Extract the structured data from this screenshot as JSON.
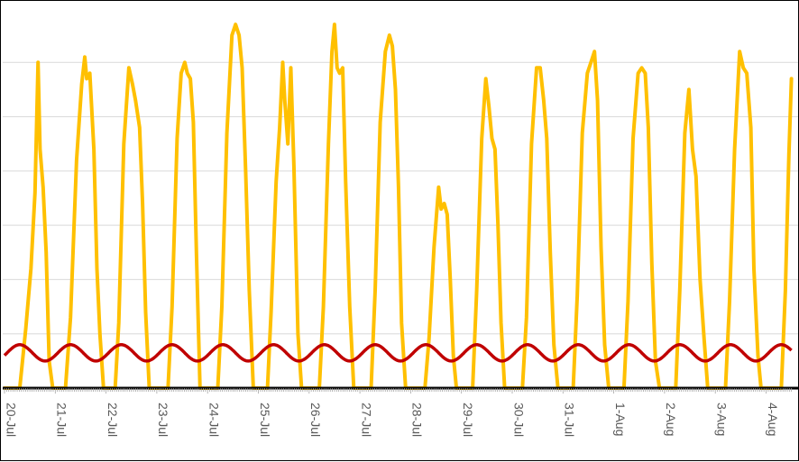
{
  "chart_data": {
    "type": "line",
    "title": "",
    "xlabel": "",
    "ylabel": "",
    "x_tick_labels": [
      "20-Jul",
      "21-Jul",
      "22-Jul",
      "23-Jul",
      "24-Jul",
      "25-Jul",
      "26-Jul",
      "27-Jul",
      "28-Jul",
      "29-Jul",
      "30-Jul",
      "31-Jul",
      "1-Aug",
      "2-Aug",
      "3-Aug",
      "4-Aug"
    ],
    "xlim": [
      0,
      15.5
    ],
    "ylim": [
      0,
      7
    ],
    "grid": "horizontal",
    "legend": "none",
    "colors": {
      "series_1": "#FFC000",
      "series_2": "#C00000",
      "axis": "#000000",
      "grid": "#D9D9D9"
    },
    "series": [
      {
        "color": "#FFC000",
        "peaks": [
          {
            "day": 0,
            "points": [
              [
                0.0,
                0
              ],
              [
                0.3,
                0
              ],
              [
                0.42,
                1.1
              ],
              [
                0.52,
                2.2
              ],
              [
                0.6,
                3.6
              ],
              [
                0.66,
                6.0
              ],
              [
                0.7,
                4.4
              ],
              [
                0.76,
                3.7
              ],
              [
                0.82,
                2.5
              ],
              [
                0.88,
                0.5
              ],
              [
                0.95,
                0
              ]
            ]
          },
          {
            "day": 1,
            "points": [
              [
                1.2,
                0
              ],
              [
                1.3,
                1.3
              ],
              [
                1.42,
                4.2
              ],
              [
                1.52,
                5.6
              ],
              [
                1.58,
                6.1
              ],
              [
                1.62,
                5.7
              ],
              [
                1.68,
                5.8
              ],
              [
                1.76,
                4.4
              ],
              [
                1.82,
                2.2
              ],
              [
                1.88,
                1.0
              ],
              [
                1.95,
                0
              ]
            ]
          },
          {
            "day": 2,
            "points": [
              [
                2.18,
                0
              ],
              [
                2.25,
                1.2
              ],
              [
                2.35,
                4.5
              ],
              [
                2.45,
                5.9
              ],
              [
                2.52,
                5.6
              ],
              [
                2.58,
                5.3
              ],
              [
                2.66,
                4.8
              ],
              [
                2.72,
                3.4
              ],
              [
                2.78,
                1.4
              ],
              [
                2.85,
                0
              ]
            ]
          },
          {
            "day": 3,
            "points": [
              [
                3.22,
                0
              ],
              [
                3.3,
                1.5
              ],
              [
                3.4,
                4.6
              ],
              [
                3.48,
                5.8
              ],
              [
                3.55,
                6.0
              ],
              [
                3.6,
                5.8
              ],
              [
                3.66,
                5.7
              ],
              [
                3.72,
                4.9
              ],
              [
                3.78,
                2.5
              ],
              [
                3.85,
                0
              ]
            ]
          },
          {
            "day": 4,
            "points": [
              [
                4.2,
                0
              ],
              [
                4.28,
                1.5
              ],
              [
                4.38,
                4.7
              ],
              [
                4.48,
                6.5
              ],
              [
                4.55,
                6.7
              ],
              [
                4.62,
                6.5
              ],
              [
                4.68,
                5.9
              ],
              [
                4.75,
                4.0
              ],
              [
                4.82,
                1.8
              ],
              [
                4.9,
                0
              ]
            ]
          },
          {
            "day": 5,
            "points": [
              [
                5.18,
                0
              ],
              [
                5.25,
                1.4
              ],
              [
                5.35,
                3.8
              ],
              [
                5.42,
                4.8
              ],
              [
                5.48,
                6.0
              ],
              [
                5.52,
                5.3
              ],
              [
                5.58,
                4.5
              ],
              [
                5.64,
                5.9
              ],
              [
                5.7,
                4.1
              ],
              [
                5.78,
                1.0
              ],
              [
                5.85,
                0
              ]
            ]
          },
          {
            "day": 6,
            "points": [
              [
                6.2,
                0
              ],
              [
                6.28,
                1.5
              ],
              [
                6.38,
                4.5
              ],
              [
                6.45,
                6.2
              ],
              [
                6.5,
                6.7
              ],
              [
                6.55,
                5.9
              ],
              [
                6.6,
                5.8
              ],
              [
                6.66,
                5.9
              ],
              [
                6.72,
                3.8
              ],
              [
                6.8,
                1.5
              ],
              [
                6.88,
                0
              ]
            ]
          },
          {
            "day": 7,
            "points": [
              [
                7.22,
                0
              ],
              [
                7.3,
                1.8
              ],
              [
                7.4,
                4.9
              ],
              [
                7.5,
                6.2
              ],
              [
                7.58,
                6.5
              ],
              [
                7.64,
                6.3
              ],
              [
                7.7,
                5.5
              ],
              [
                7.76,
                3.7
              ],
              [
                7.82,
                1.2
              ],
              [
                7.9,
                0
              ]
            ]
          },
          {
            "day": 8,
            "points": [
              [
                8.28,
                0
              ],
              [
                8.36,
                0.9
              ],
              [
                8.46,
                2.6
              ],
              [
                8.55,
                3.7
              ],
              [
                8.6,
                3.3
              ],
              [
                8.66,
                3.4
              ],
              [
                8.72,
                3.2
              ],
              [
                8.78,
                2.0
              ],
              [
                8.84,
                0.6
              ],
              [
                8.9,
                0
              ]
            ]
          },
          {
            "day": 9,
            "points": [
              [
                9.22,
                0
              ],
              [
                9.3,
                1.8
              ],
              [
                9.4,
                4.6
              ],
              [
                9.48,
                5.7
              ],
              [
                9.54,
                5.2
              ],
              [
                9.6,
                4.6
              ],
              [
                9.66,
                4.4
              ],
              [
                9.72,
                3.0
              ],
              [
                9.78,
                1.2
              ],
              [
                9.85,
                0
              ]
            ]
          },
          {
            "day": 10,
            "points": [
              [
                10.2,
                0
              ],
              [
                10.28,
                1.3
              ],
              [
                10.38,
                4.5
              ],
              [
                10.48,
                5.9
              ],
              [
                10.55,
                5.9
              ],
              [
                10.62,
                5.3
              ],
              [
                10.68,
                4.6
              ],
              [
                10.75,
                2.5
              ],
              [
                10.82,
                0.8
              ],
              [
                10.9,
                0
              ]
            ]
          },
          {
            "day": 11,
            "points": [
              [
                11.2,
                0
              ],
              [
                11.28,
                1.7
              ],
              [
                11.38,
                4.7
              ],
              [
                11.48,
                5.8
              ],
              [
                11.55,
                6.0
              ],
              [
                11.62,
                6.2
              ],
              [
                11.68,
                5.3
              ],
              [
                11.75,
                2.6
              ],
              [
                11.82,
                0.8
              ],
              [
                11.9,
                0
              ]
            ]
          },
          {
            "day": 12,
            "points": [
              [
                12.2,
                0
              ],
              [
                12.28,
                1.6
              ],
              [
                12.38,
                4.6
              ],
              [
                12.48,
                5.8
              ],
              [
                12.55,
                5.9
              ],
              [
                12.62,
                5.8
              ],
              [
                12.68,
                4.8
              ],
              [
                12.75,
                2.3
              ],
              [
                12.82,
                0.5
              ],
              [
                12.9,
                0
              ]
            ]
          },
          {
            "day": 13,
            "points": [
              [
                13.22,
                0
              ],
              [
                13.3,
                1.8
              ],
              [
                13.4,
                4.7
              ],
              [
                13.48,
                5.5
              ],
              [
                13.55,
                4.4
              ],
              [
                13.62,
                3.9
              ],
              [
                13.7,
                2.0
              ],
              [
                13.78,
                0.9
              ],
              [
                13.85,
                0
              ]
            ]
          },
          {
            "day": 14,
            "points": [
              [
                14.2,
                0
              ],
              [
                14.28,
                1.6
              ],
              [
                14.38,
                4.4
              ],
              [
                14.48,
                6.2
              ],
              [
                14.55,
                5.9
              ],
              [
                14.62,
                5.8
              ],
              [
                14.7,
                4.8
              ],
              [
                14.76,
                2.2
              ],
              [
                14.84,
                0.6
              ],
              [
                14.9,
                0
              ]
            ]
          },
          {
            "day": 15,
            "points": [
              [
                15.3,
                0
              ],
              [
                15.38,
                1.8
              ],
              [
                15.45,
                4.3
              ],
              [
                15.5,
                5.7
              ]
            ]
          }
        ]
      },
      {
        "color": "#C00000",
        "daily_wave": {
          "mean": 0.65,
          "amplitude": 0.15,
          "peak_hour_fraction": 0.3
        }
      }
    ]
  }
}
